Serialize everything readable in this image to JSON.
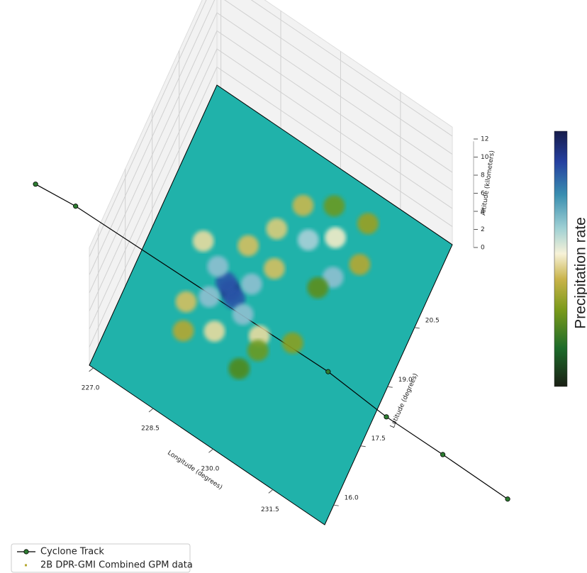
{
  "chart_data": {
    "type": "scatter3d",
    "xlabel": "Longitude (degrees)",
    "ylabel": "Latitude (degrees)",
    "zlabel": "Altitude (kilometers)",
    "colorbar_label": "Precipitation rate",
    "xlim": [
      226.9,
      232.8
    ],
    "ylim": [
      15.5,
      22.6
    ],
    "zlim": [
      0,
      13
    ],
    "xticks": [
      {
        "value": 227,
        "label": "227.0"
      },
      {
        "value": 228.5,
        "label": "228.5"
      },
      {
        "value": 230,
        "label": "230.0"
      },
      {
        "value": 231.5,
        "label": "231.5"
      }
    ],
    "yticks": [
      {
        "value": 16,
        "label": "16.0"
      },
      {
        "value": 17.5,
        "label": "17.5"
      },
      {
        "value": 19,
        "label": "19.0"
      },
      {
        "value": 20.5,
        "label": "20.5"
      }
    ],
    "zticks": [
      0,
      2,
      4,
      6,
      8,
      10,
      12
    ],
    "plane_color": "#20b2aa",
    "wall_color": "#f2f2f2",
    "grid": true,
    "legend": "lower left",
    "series": [
      {
        "name": "Cyclone Track",
        "color": "#000000",
        "marker_color": "#2e7d32",
        "x": [
          236.08,
          234.45,
          233.04,
          231.53,
          225.25,
          224.29
        ],
        "y": [
          18.4,
          18.41,
          18.4,
          18.51,
          18.4,
          18.3
        ]
      },
      {
        "name": "2B DPR-GMI Combined GPM data",
        "color": "#b5a830",
        "x": [
          228.95,
          229.1,
          228.8,
          229.4,
          228.5,
          229.3,
          228.6,
          229.9,
          228.0,
          229.6,
          228.2,
          229.0,
          228.9,
          230.0,
          230.5,
          229.6,
          230.8,
          231.2,
          230.2,
          229.3,
          231.0,
          230.6,
          230.0,
          229.8,
          230.6,
          228.4
        ],
        "y": [
          18.8,
          18.7,
          18.9,
          18.5,
          19.1,
          19.2,
          18.4,
          18.3,
          19.4,
          19.8,
          18.0,
          17.8,
          19.9,
          20.8,
          21.2,
          21.4,
          20.4,
          21.0,
          21.8,
          20.6,
          21.9,
          20.0,
          18.0,
          17.4,
          18.6,
          17.4
        ],
        "colors": [
          "#1f3b8c",
          "#2a55a8",
          "#2a55a8",
          "#8fc0d0",
          "#8fc0d0",
          "#8fc0d0",
          "#8fc0d0",
          "#e8dca0",
          "#e8dca0",
          "#d4c060",
          "#d4c060",
          "#e8dca0",
          "#d4c060",
          "#a9d0d8",
          "#f3ecc8",
          "#c8b850",
          "#8fc0d0",
          "#b5a830",
          "#6a9a20",
          "#d9cc7a",
          "#9aa020",
          "#5c8e1c",
          "#6a9a20",
          "#4f8a1a",
          "#8aa020",
          "#b5a830"
        ]
      }
    ]
  }
}
